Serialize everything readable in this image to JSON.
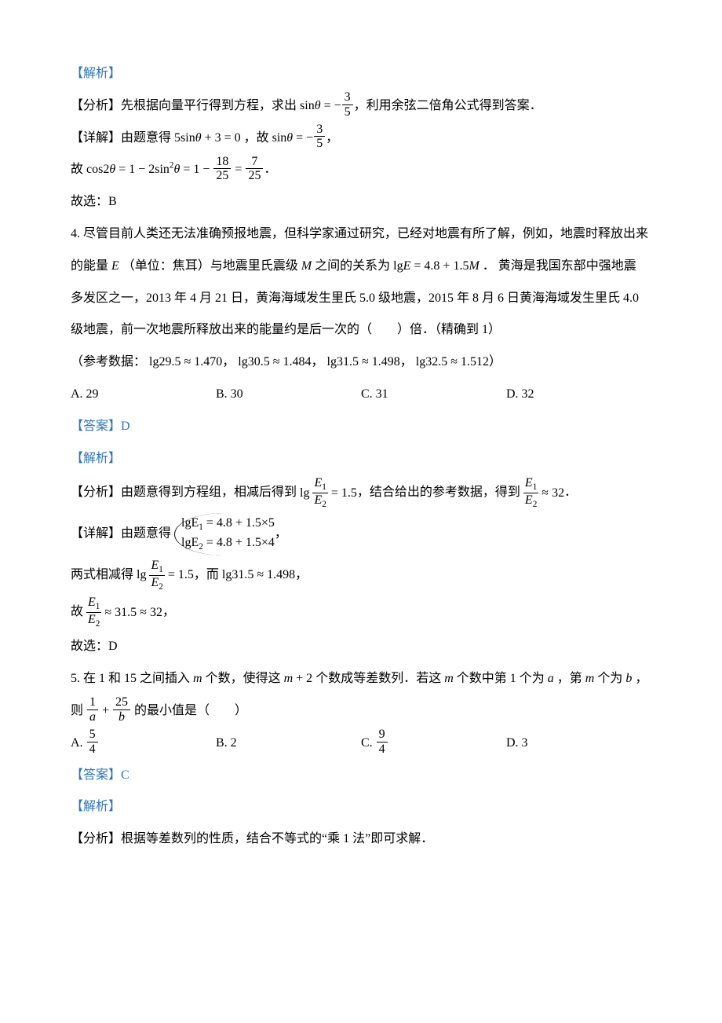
{
  "colors": {
    "link_blue": "#2e74b5",
    "text": "#000000",
    "bg": "#ffffff"
  },
  "labels": {
    "jiexi": "【解析】",
    "fenxi": "【分析】",
    "xiangjie": "【详解】",
    "daan": "【答案】",
    "guxuan": "故选：",
    "cankao": "（参考数据：",
    "q3_ans": "B",
    "q4_ans": "D",
    "q5_ans": "C"
  },
  "q3": {
    "fenxi_a": "先根据向量平行得到方程，求出",
    "fenxi_b": "，利用余弦二倍角公式得到答案．",
    "xiangjie_a": "由题意得",
    "xiangjie_b": "，故",
    "cos_line_a": "故",
    "cos_line_b": "．",
    "sin_eq": {
      "lhs": "sin",
      "theta": "θ",
      "neg": "−",
      "num": "3",
      "den": "5"
    },
    "lin_eq": "5sinθ + 3 = 0",
    "cos_eq": {
      "lhs": "cos2θ = 1 − 2sin",
      "sup": "2",
      "theta": "θ = 1 −",
      "f1n": "18",
      "f1d": "25",
      "eq": "=",
      "f2n": "7",
      "f2d": "25"
    },
    "xuan": "B"
  },
  "q4": {
    "num": "4. ",
    "stem1": "尽管目前人类还无法准确预报地震，但科学家通过研究，已经对地震有所了解，例如，地震时释放出来",
    "stem2_a": "的能量",
    "stem2_E": "E",
    "stem2_b": "（单位：焦耳）与地震里氏震级",
    "stem2_M": "M",
    "stem2_c": "之间的关系为",
    "stem2_eq": "lgE = 4.8 + 1.5M",
    "stem2_d": "． 黄海是我国东部中强地震",
    "stem3": "多发区之一，2013 年 4 月 21 日，黄海海域发生里氏 5.0 级地震，2015 年 8 月 6 日黄海海域发生里氏 4.0",
    "stem4": "级地震，前一次地震所释放出来的能量约是后一次的（　　）倍．（精确到 1）",
    "ref": {
      "a": "lg29.5 ≈ 1.470",
      "b": "lg30.5 ≈ 1.484",
      "c": "lg31.5 ≈ 1.498",
      "d": "lg32.5 ≈ 1.512"
    },
    "opts": {
      "A": "A. 29",
      "B": "B. 30",
      "C": "C. 31",
      "D": "D. 32"
    },
    "fenxi_a": "由题意得到方程组，相减后得到",
    "fenxi_b": "，结合给出的参考数据，得到",
    "fenxi_c": "．",
    "lg_frac": {
      "pre": "lg",
      "E1": "E",
      "s1": "1",
      "E2": "E",
      "s2": "2",
      "eq": "= 1.5"
    },
    "res_frac": {
      "E1": "E",
      "s1": "1",
      "E2": "E",
      "s2": "2",
      "eq": "≈ 32"
    },
    "xiangjie_a": "由题意得",
    "sys": {
      "r1": "lgE",
      "r1s": "1",
      "r1b": " = 4.8 + 1.5×5",
      "r2": "lgE",
      "r2s": "2",
      "r2b": " = 4.8 + 1.5×4"
    },
    "comma": "，",
    "sub_a": "两式相减得",
    "sub_b": "，而",
    "sub_c": "lg31.5 ≈ 1.498",
    "gu_a": "故",
    "gu_val": "≈ 31.5 ≈ 32",
    "gu_b": "，",
    "xuan": "D"
  },
  "q5": {
    "num": "5. ",
    "stem1_a": "在 1 和 15 之间插入",
    "m": "m",
    "stem1_b": "个数，使得这",
    "stem1_c": "个数成等差数列．若这",
    "mp2": "m + 2",
    "stem1_d": "个数中第 1 个为",
    "a": "a",
    "stem1_e": "，第",
    "stem1_f": "个为",
    "b": "b",
    "stem1_g": "，",
    "stem2_a": "则",
    "expr": {
      "f1n": "1",
      "f1d": "a",
      "plus": "+",
      "f2n": "25",
      "f2d": "b"
    },
    "stem2_b": "的最小值是（　　）",
    "opts": {
      "A": {
        "label": "A. ",
        "num": "5",
        "den": "4"
      },
      "B": "B. 2",
      "C": {
        "label": "C. ",
        "num": "9",
        "den": "4"
      },
      "D": "D. 3"
    },
    "fenxi": "根据等差数列的性质，结合不等式的“乘 1 法”即可求解．"
  }
}
